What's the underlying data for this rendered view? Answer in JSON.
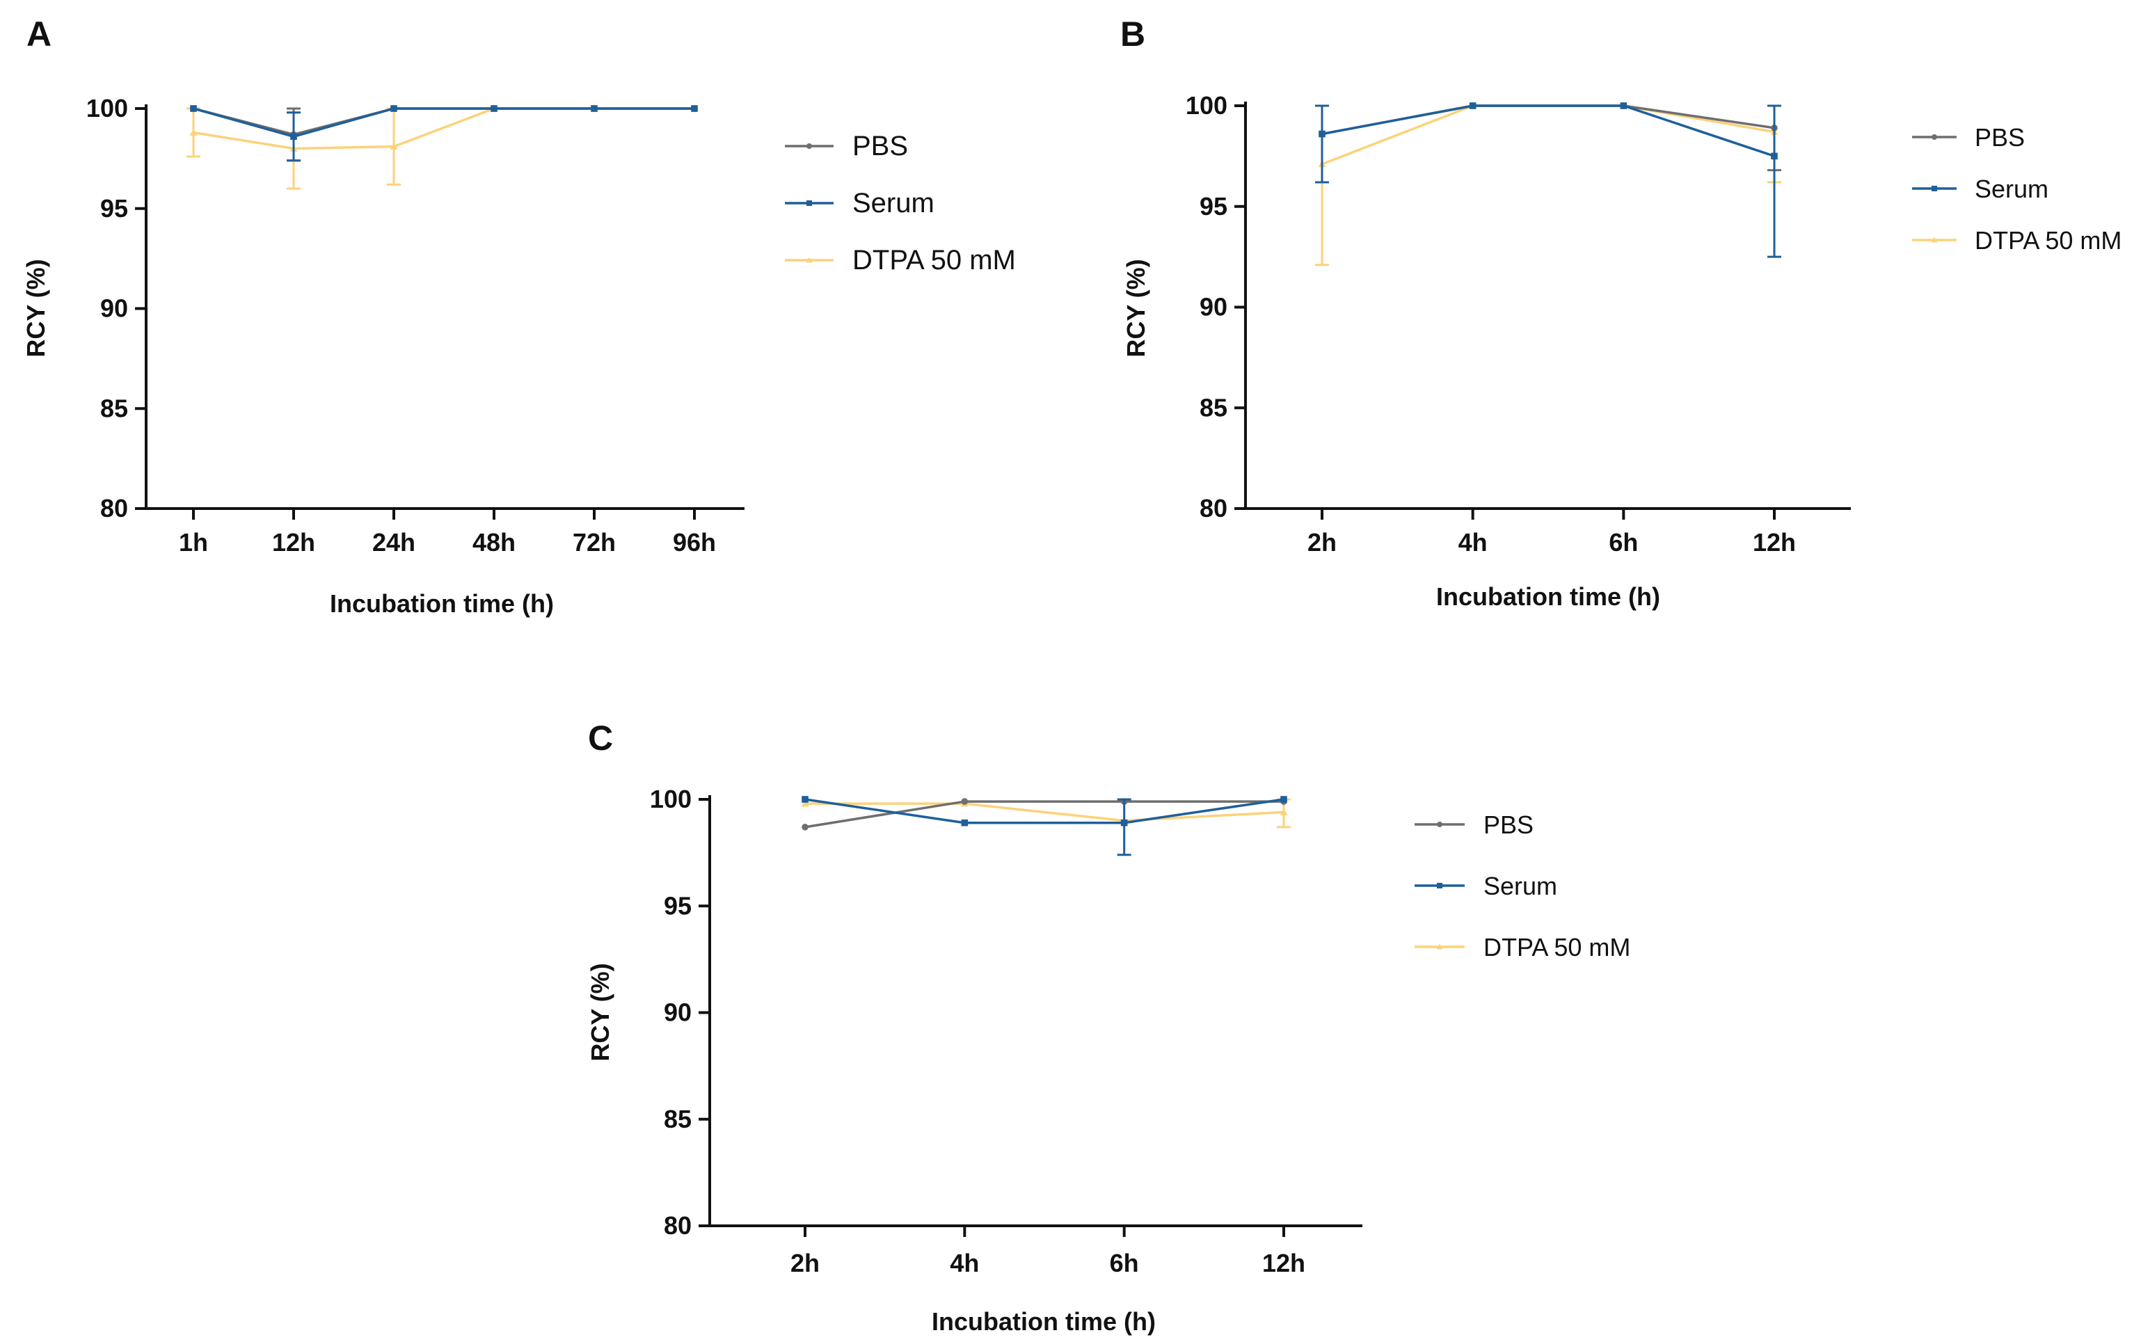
{
  "series_styles": {
    "PBS": {
      "color": "#6e6e6e",
      "marker": "circle"
    },
    "Serum": {
      "color": "#1f5f9a",
      "marker": "square"
    },
    "DTPA 50 mM": {
      "color": "#fcd27a",
      "marker": "triangle"
    }
  },
  "chart_data": [
    {
      "type": "line",
      "panel_label": "A",
      "title": "",
      "xlabel": "Incubation time (h)",
      "ylabel": "RCY (%)",
      "categories": [
        "1h",
        "12h",
        "24h",
        "48h",
        "72h",
        "96h"
      ],
      "ylim": [
        80,
        100
      ],
      "yticks": [
        "80",
        "85",
        "90",
        "95",
        "100"
      ],
      "grid": false,
      "legend": "right",
      "series": [
        {
          "name": "PBS",
          "values": [
            100,
            98.7,
            100,
            100,
            100,
            100
          ],
          "errors": [
            0,
            1.3,
            0,
            0,
            0,
            0
          ]
        },
        {
          "name": "Serum",
          "values": [
            100,
            98.6,
            100,
            100,
            100,
            100
          ],
          "errors": [
            0,
            1.2,
            0,
            0,
            0,
            0
          ]
        },
        {
          "name": "DTPA 50 mM",
          "values": [
            98.8,
            98.0,
            98.1,
            100,
            100,
            100
          ],
          "errors": [
            1.2,
            2.0,
            1.9,
            0,
            0,
            0
          ]
        }
      ]
    },
    {
      "type": "line",
      "panel_label": "B",
      "title": "",
      "xlabel": "Incubation time (h)",
      "ylabel": "RCY (%)",
      "categories": [
        "2h",
        "4h",
        "6h",
        "12h"
      ],
      "ylim": [
        80,
        100
      ],
      "yticks": [
        "80",
        "85",
        "90",
        "95",
        "100"
      ],
      "grid": false,
      "legend": "right",
      "series": [
        {
          "name": "PBS",
          "values": [
            98.6,
            100,
            100,
            98.9
          ],
          "errors": [
            2.4,
            0,
            0,
            2.1
          ]
        },
        {
          "name": "Serum",
          "values": [
            98.6,
            100,
            100,
            97.5
          ],
          "errors": [
            2.4,
            0,
            0,
            5.0
          ]
        },
        {
          "name": "DTPA 50 mM",
          "values": [
            97.1,
            100,
            100,
            98.7
          ],
          "errors": [
            5.0,
            0,
            0,
            2.5
          ]
        }
      ]
    },
    {
      "type": "line",
      "panel_label": "C",
      "title": "",
      "xlabel": "Incubation time (h)",
      "ylabel": "RCY (%)",
      "categories": [
        "2h",
        "4h",
        "6h",
        "12h"
      ],
      "ylim": [
        80,
        100
      ],
      "yticks": [
        "80",
        "85",
        "90",
        "95",
        "100"
      ],
      "grid": false,
      "legend": "right",
      "series": [
        {
          "name": "PBS",
          "values": [
            98.7,
            99.9,
            99.9,
            99.9
          ],
          "errors": [
            0,
            0,
            0,
            0
          ]
        },
        {
          "name": "Serum",
          "values": [
            100,
            98.9,
            98.9,
            100
          ],
          "errors": [
            0,
            0,
            1.5,
            0
          ]
        },
        {
          "name": "DTPA 50 mM",
          "values": [
            99.8,
            99.8,
            99.0,
            99.4
          ],
          "errors": [
            0,
            0,
            0,
            0.7
          ]
        }
      ]
    }
  ]
}
